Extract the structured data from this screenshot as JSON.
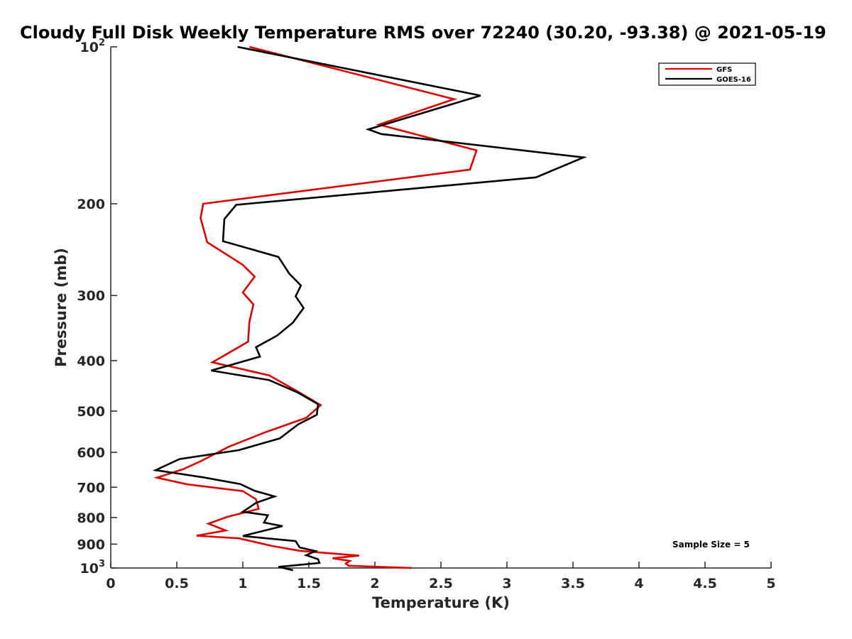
{
  "chart_data": {
    "type": "line",
    "title": "Cloudy Full Disk Weekly Temperature RMS over 72240 (30.20, -93.38) @ 2021-05-19",
    "xlabel": "Temperature (K)",
    "ylabel": "Pressure (mb)",
    "xlim": [
      0,
      5
    ],
    "ylim": [
      100,
      1000
    ],
    "y_scale": "log",
    "y_reversed": true,
    "grid": false,
    "legend_position": "top-right",
    "x_ticks": [
      0,
      0.5,
      1,
      1.5,
      2,
      2.5,
      3,
      3.5,
      4,
      4.5,
      5
    ],
    "x_tick_labels": [
      "0",
      "0.5",
      "1",
      "1.5",
      "2",
      "2.5",
      "3",
      "3.5",
      "4",
      "4.5",
      "5"
    ],
    "y_ticks": [
      100,
      200,
      300,
      400,
      500,
      600,
      700,
      800,
      900,
      1000
    ],
    "y_tick_labels": [
      "10^2",
      "200",
      "300",
      "400",
      "500",
      "600",
      "700",
      "800",
      "900",
      "10^3"
    ],
    "annotation": "Sample Size = 5",
    "series": [
      {
        "name": "GFS",
        "color": "#e00000",
        "x": [
          1.05,
          2.6,
          2.03,
          2.77,
          2.72,
          0.7,
          0.68,
          0.73,
          1.0,
          1.09,
          1.0,
          1.08,
          1.05,
          1.04,
          0.77,
          1.2,
          1.4,
          1.59,
          1.48,
          1.17,
          0.89,
          0.68,
          0.55,
          0.35,
          0.58,
          1.0,
          1.1,
          1.12,
          0.88,
          0.74,
          0.87,
          0.65,
          0.97,
          1.22,
          1.43,
          1.88,
          1.68,
          1.81,
          1.78,
          1.8,
          2.28
        ],
        "y": [
          100,
          126,
          141,
          158,
          172,
          200,
          213,
          237,
          262,
          276,
          296,
          312,
          337,
          368,
          403,
          427,
          456,
          487,
          515,
          549,
          586,
          624,
          646,
          671,
          691,
          712,
          738,
          770,
          798,
          822,
          847,
          867,
          877,
          907,
          927,
          947,
          958,
          969,
          980,
          990,
          1000
        ]
      },
      {
        "name": "GOES-16",
        "color": "#000000",
        "x": [
          0.96,
          2.8,
          1.95,
          2.05,
          3.58,
          3.22,
          0.95,
          0.86,
          0.85,
          1.27,
          1.35,
          1.44,
          1.4,
          1.46,
          1.38,
          1.26,
          1.1,
          1.13,
          0.76,
          1.2,
          1.42,
          1.57,
          1.56,
          1.42,
          1.28,
          0.97,
          0.52,
          0.34,
          0.7,
          0.98,
          1.09,
          1.24,
          1.1,
          1.05,
          1.0,
          1.19,
          1.16,
          1.3,
          1.0,
          1.4,
          1.43,
          1.55,
          1.48,
          1.57,
          1.58,
          1.27,
          1.38
        ],
        "y": [
          100,
          124,
          144,
          147,
          163,
          178,
          201,
          214,
          236,
          253,
          272,
          287,
          301,
          317,
          338,
          358,
          377,
          393,
          418,
          436,
          461,
          485,
          508,
          530,
          564,
          594,
          618,
          649,
          670,
          690,
          711,
          729,
          750,
          765,
          780,
          792,
          818,
          831,
          868,
          888,
          913,
          928,
          945,
          962,
          978,
          995,
          1010
        ]
      }
    ]
  }
}
